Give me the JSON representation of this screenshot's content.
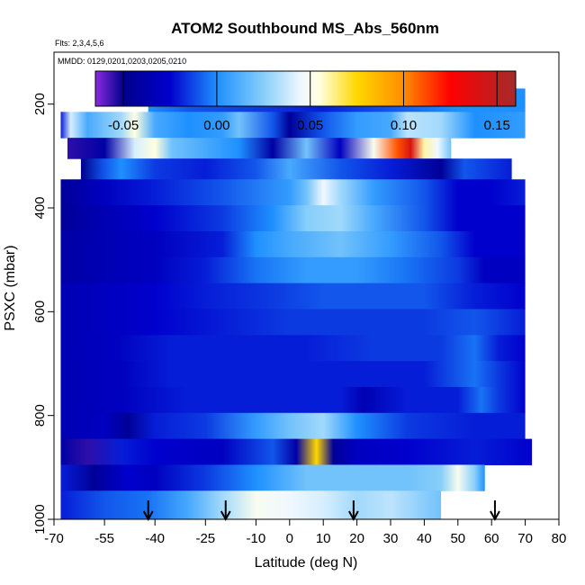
{
  "chart_data": {
    "type": "heatmap",
    "title": "ATOM2 Southbound MS_Abs_560nm",
    "flights_label": "Flts: 2,3,4,5,6",
    "dates_label": "MMDD: 0129,0201,0203,0205,0210",
    "xlabel": "Latitude (deg N)",
    "ylabel": "PSXC (mbar)",
    "xlim": [
      -70,
      80
    ],
    "ylim": [
      1000,
      100
    ],
    "x_ticks": [
      -70,
      -55,
      -40,
      -25,
      -10,
      0,
      10,
      20,
      30,
      40,
      50,
      60,
      70,
      80
    ],
    "y_ticks": [
      200,
      400,
      600,
      800,
      1000
    ],
    "colorbar": {
      "range": [
        -0.065,
        0.16
      ],
      "ticks": [
        -0.05,
        0.0,
        0.05,
        0.1,
        0.15
      ],
      "tick_labels": [
        "-0.05",
        "0.00",
        "0.05",
        "0.10",
        "0.15"
      ],
      "stops": [
        {
          "v": -0.065,
          "color": "#8a2be2"
        },
        {
          "v": -0.05,
          "color": "#00008b"
        },
        {
          "v": -0.025,
          "color": "#0000cd"
        },
        {
          "v": 0.0,
          "color": "#1e90ff"
        },
        {
          "v": 0.025,
          "color": "#87cefa"
        },
        {
          "v": 0.045,
          "color": "#f0f8ff"
        },
        {
          "v": 0.055,
          "color": "#ffffe0"
        },
        {
          "v": 0.075,
          "color": "#ffd700"
        },
        {
          "v": 0.1,
          "color": "#ff8c00"
        },
        {
          "v": 0.125,
          "color": "#ff0000"
        },
        {
          "v": 0.16,
          "color": "#a52a2a"
        }
      ]
    },
    "profile_markers_latitude": [
      -42,
      -19,
      19,
      61
    ],
    "rows": [
      {
        "p_top": 170,
        "p_bot": 215,
        "lat_start": -42,
        "lat_end": 70,
        "nodes": [
          [
            -42,
            0.0
          ],
          [
            -30,
            -0.01
          ],
          [
            -10,
            -0.015
          ],
          [
            10,
            -0.02
          ],
          [
            30,
            -0.01
          ],
          [
            50,
            0.0
          ],
          [
            70,
            0.0
          ]
        ]
      },
      {
        "p_top": 215,
        "p_bot": 265,
        "lat_start": -68,
        "lat_end": 70,
        "nodes": [
          [
            -68,
            -0.02
          ],
          [
            -65,
            0.04
          ],
          [
            -60,
            0.01
          ],
          [
            -50,
            0.03
          ],
          [
            -46,
            0.055
          ],
          [
            -40,
            0.01
          ],
          [
            -30,
            0.0
          ],
          [
            -20,
            0.005
          ],
          [
            -15,
            0.02
          ],
          [
            -5,
            -0.01
          ],
          [
            0,
            -0.045
          ],
          [
            10,
            -0.01
          ],
          [
            20,
            0.005
          ],
          [
            30,
            0.01
          ],
          [
            35,
            0.035
          ],
          [
            45,
            0.03
          ],
          [
            55,
            0.0
          ],
          [
            70,
            0.005
          ]
        ]
      },
      {
        "p_top": 265,
        "p_bot": 305,
        "lat_start": -66,
        "lat_end": 48,
        "nodes": [
          [
            -66,
            -0.055
          ],
          [
            -55,
            -0.04
          ],
          [
            -46,
            0.04
          ],
          [
            -40,
            0.055
          ],
          [
            -35,
            0.02
          ],
          [
            -25,
            0.01
          ],
          [
            -15,
            0.0
          ],
          [
            -5,
            -0.04
          ],
          [
            5,
            0.02
          ],
          [
            15,
            -0.03
          ],
          [
            25,
            0.05
          ],
          [
            32,
            0.11
          ],
          [
            36,
            0.14
          ],
          [
            40,
            0.06
          ],
          [
            44,
            0.045
          ],
          [
            48,
            0.02
          ]
        ]
      },
      {
        "p_top": 305,
        "p_bot": 345,
        "lat_start": -62,
        "lat_end": 66,
        "nodes": [
          [
            -62,
            -0.05
          ],
          [
            -55,
            -0.01
          ],
          [
            -50,
            0.0
          ],
          [
            -40,
            -0.015
          ],
          [
            -25,
            -0.02
          ],
          [
            -10,
            -0.01
          ],
          [
            0,
            0.01
          ],
          [
            15,
            -0.01
          ],
          [
            30,
            -0.02
          ],
          [
            45,
            -0.045
          ],
          [
            52,
            -0.01
          ],
          [
            66,
            -0.02
          ]
        ]
      },
      {
        "p_top": 345,
        "p_bot": 395,
        "lat_start": -68,
        "lat_end": 70,
        "nodes": [
          [
            -68,
            -0.045
          ],
          [
            -55,
            -0.03
          ],
          [
            -40,
            -0.02
          ],
          [
            -20,
            -0.01
          ],
          [
            0,
            0.005
          ],
          [
            5,
            0.02
          ],
          [
            10,
            0.045
          ],
          [
            15,
            0.03
          ],
          [
            25,
            0.005
          ],
          [
            40,
            -0.01
          ],
          [
            50,
            -0.025
          ],
          [
            60,
            -0.025
          ],
          [
            70,
            -0.02
          ]
        ]
      },
      {
        "p_top": 395,
        "p_bot": 445,
        "lat_start": -68,
        "lat_end": 70,
        "nodes": [
          [
            -68,
            -0.045
          ],
          [
            -55,
            -0.035
          ],
          [
            -40,
            -0.025
          ],
          [
            -20,
            -0.015
          ],
          [
            -5,
            0.0
          ],
          [
            5,
            0.025
          ],
          [
            15,
            0.03
          ],
          [
            25,
            0.01
          ],
          [
            40,
            -0.01
          ],
          [
            50,
            -0.025
          ],
          [
            70,
            -0.025
          ]
        ]
      },
      {
        "p_top": 445,
        "p_bot": 495,
        "lat_start": -68,
        "lat_end": 70,
        "nodes": [
          [
            -68,
            -0.04
          ],
          [
            -55,
            -0.035
          ],
          [
            -40,
            -0.03
          ],
          [
            -20,
            -0.02
          ],
          [
            -10,
            0.0
          ],
          [
            0,
            0.01
          ],
          [
            15,
            0.02
          ],
          [
            30,
            0.005
          ],
          [
            45,
            -0.01
          ],
          [
            55,
            -0.025
          ],
          [
            70,
            -0.025
          ]
        ]
      },
      {
        "p_top": 495,
        "p_bot": 545,
        "lat_start": -68,
        "lat_end": 70,
        "nodes": [
          [
            -68,
            -0.04
          ],
          [
            -55,
            -0.035
          ],
          [
            -40,
            -0.03
          ],
          [
            -25,
            -0.02
          ],
          [
            -10,
            -0.005
          ],
          [
            5,
            0.005
          ],
          [
            20,
            0.005
          ],
          [
            35,
            -0.005
          ],
          [
            50,
            -0.015
          ],
          [
            58,
            -0.03
          ],
          [
            70,
            -0.03
          ]
        ]
      },
      {
        "p_top": 545,
        "p_bot": 595,
        "lat_start": -68,
        "lat_end": 70,
        "nodes": [
          [
            -68,
            -0.035
          ],
          [
            -55,
            -0.03
          ],
          [
            -40,
            -0.025
          ],
          [
            -25,
            -0.02
          ],
          [
            -5,
            -0.015
          ],
          [
            10,
            -0.01
          ],
          [
            25,
            -0.01
          ],
          [
            40,
            -0.01
          ],
          [
            55,
            -0.02
          ],
          [
            70,
            -0.025
          ]
        ]
      },
      {
        "p_top": 595,
        "p_bot": 645,
        "lat_start": -68,
        "lat_end": 70,
        "nodes": [
          [
            -68,
            -0.035
          ],
          [
            -55,
            -0.03
          ],
          [
            -40,
            -0.025
          ],
          [
            -20,
            -0.02
          ],
          [
            0,
            -0.015
          ],
          [
            20,
            -0.015
          ],
          [
            40,
            -0.015
          ],
          [
            55,
            -0.01
          ],
          [
            70,
            -0.02
          ]
        ]
      },
      {
        "p_top": 645,
        "p_bot": 695,
        "lat_start": -68,
        "lat_end": 70,
        "nodes": [
          [
            -68,
            -0.035
          ],
          [
            -52,
            -0.03
          ],
          [
            -35,
            -0.02
          ],
          [
            -15,
            -0.02
          ],
          [
            5,
            -0.02
          ],
          [
            25,
            -0.015
          ],
          [
            45,
            -0.015
          ],
          [
            55,
            -0.005
          ],
          [
            62,
            -0.02
          ],
          [
            70,
            -0.025
          ]
        ]
      },
      {
        "p_top": 695,
        "p_bot": 745,
        "lat_start": -68,
        "lat_end": 70,
        "nodes": [
          [
            -68,
            -0.035
          ],
          [
            -50,
            -0.03
          ],
          [
            -35,
            -0.02
          ],
          [
            -20,
            -0.02
          ],
          [
            0,
            -0.02
          ],
          [
            20,
            -0.02
          ],
          [
            40,
            -0.02
          ],
          [
            55,
            -0.005
          ],
          [
            62,
            -0.015
          ],
          [
            70,
            -0.025
          ]
        ]
      },
      {
        "p_top": 745,
        "p_bot": 795,
        "lat_start": -68,
        "lat_end": 70,
        "nodes": [
          [
            -68,
            -0.035
          ],
          [
            -50,
            -0.03
          ],
          [
            -30,
            -0.02
          ],
          [
            -15,
            -0.02
          ],
          [
            0,
            -0.02
          ],
          [
            15,
            -0.02
          ],
          [
            22,
            -0.035
          ],
          [
            35,
            -0.02
          ],
          [
            50,
            -0.02
          ],
          [
            57,
            -0.005
          ],
          [
            62,
            -0.015
          ],
          [
            70,
            -0.025
          ]
        ]
      },
      {
        "p_top": 795,
        "p_bot": 845,
        "lat_start": -68,
        "lat_end": 70,
        "nodes": [
          [
            -68,
            -0.035
          ],
          [
            -55,
            -0.03
          ],
          [
            -48,
            -0.045
          ],
          [
            -40,
            -0.02
          ],
          [
            -25,
            -0.015
          ],
          [
            -10,
            0.005
          ],
          [
            0,
            0.02
          ],
          [
            10,
            0.03
          ],
          [
            20,
            0.0
          ],
          [
            35,
            -0.015
          ],
          [
            55,
            -0.02
          ],
          [
            70,
            -0.02
          ]
        ]
      },
      {
        "p_top": 845,
        "p_bot": 895,
        "lat_start": -68,
        "lat_end": 72,
        "nodes": [
          [
            -68,
            -0.04
          ],
          [
            -60,
            -0.055
          ],
          [
            -50,
            -0.02
          ],
          [
            -40,
            -0.025
          ],
          [
            -20,
            -0.03
          ],
          [
            -5,
            -0.01
          ],
          [
            2,
            -0.04
          ],
          [
            8,
            0.075
          ],
          [
            13,
            -0.045
          ],
          [
            20,
            -0.03
          ],
          [
            35,
            -0.025
          ],
          [
            55,
            -0.02
          ],
          [
            72,
            -0.025
          ]
        ]
      },
      {
        "p_top": 895,
        "p_bot": 945,
        "lat_start": -68,
        "lat_end": 58,
        "nodes": [
          [
            -68,
            -0.02
          ],
          [
            -58,
            -0.045
          ],
          [
            -48,
            -0.025
          ],
          [
            -40,
            -0.03
          ],
          [
            -25,
            -0.015
          ],
          [
            -10,
            0.0
          ],
          [
            5,
            0.02
          ],
          [
            20,
            0.02
          ],
          [
            35,
            0.02
          ],
          [
            45,
            0.025
          ],
          [
            50,
            0.05
          ],
          [
            55,
            0.025
          ],
          [
            58,
            0.0
          ]
        ]
      },
      {
        "p_top": 945,
        "p_bot": 1000,
        "lat_start": -68,
        "lat_end": 45,
        "nodes": [
          [
            -68,
            -0.02
          ],
          [
            -55,
            -0.01
          ],
          [
            -42,
            -0.005
          ],
          [
            -30,
            0.01
          ],
          [
            -20,
            0.03
          ],
          [
            -10,
            0.05
          ],
          [
            0,
            0.045
          ],
          [
            10,
            0.04
          ],
          [
            20,
            0.03
          ],
          [
            30,
            0.035
          ],
          [
            45,
            0.02
          ]
        ]
      }
    ]
  }
}
